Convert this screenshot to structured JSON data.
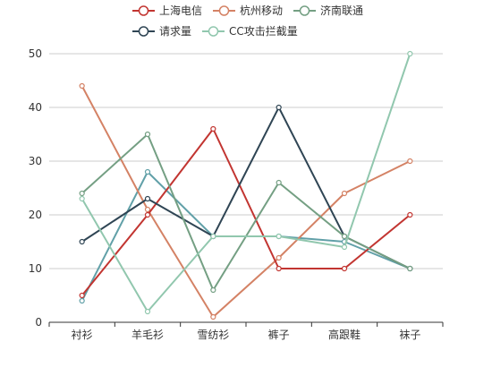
{
  "chart_data": {
    "type": "line",
    "categories": [
      "衬衫",
      "羊毛衫",
      "雪纺衫",
      "裤子",
      "高跟鞋",
      "袜子"
    ],
    "series": [
      {
        "name": "上海电信",
        "color": "#c23531",
        "values": [
          5,
          20,
          36,
          10,
          10,
          20
        ]
      },
      {
        "name": "杭州移动",
        "color": "#d48265",
        "values": [
          44,
          21,
          1,
          12,
          24,
          30
        ]
      },
      {
        "name": "济南联通",
        "color": "#749f83",
        "values": [
          24,
          35,
          6,
          26,
          16,
          10
        ]
      },
      {
        "name": "请求量",
        "color": "#2f4554",
        "values": [
          15,
          23,
          16,
          40,
          16,
          10
        ]
      },
      {
        "name": "CC攻击拦截量",
        "color": "#91c7ae",
        "values": [
          23,
          2,
          16,
          16,
          14,
          50
        ]
      }
    ],
    "extra_series": [
      {
        "color": "#61a0a8",
        "values": [
          4,
          28,
          16,
          16,
          15,
          10
        ]
      }
    ],
    "ylim": [
      0,
      50
    ],
    "yticks": [
      0,
      10,
      20,
      30,
      40,
      50
    ],
    "grid": true,
    "legend_position": "top"
  }
}
